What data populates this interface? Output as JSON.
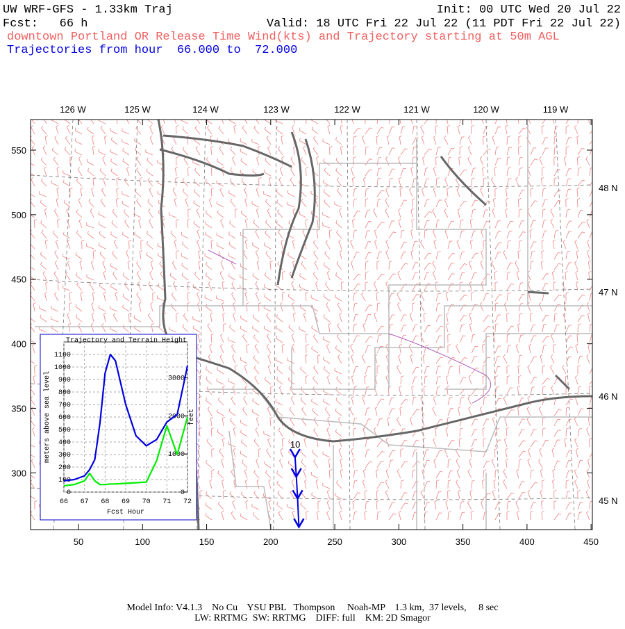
{
  "header": {
    "title": "UW WRF-GFS - 1.33km Traj",
    "init": "Init: 00 UTC Wed 20 Jul 22",
    "forecast": "Fcst:   66 h",
    "valid": "Valid: 18 UTC Fri 22 Jul 22 (11 PDT Fri 22 Jul 22)",
    "subtitle": "downtown Portland OR Release Time Wind(kts) and Trajectory starting at 50m AGL",
    "trajectory_range": "Trajectories from hour  66.000 to  72.000"
  },
  "map": {
    "xlim": [
      12.6,
      451
    ],
    "ylim": [
      256,
      573.7
    ],
    "xticks": [
      50,
      100,
      150,
      200,
      250,
      300,
      350,
      400,
      450
    ],
    "yticks": [
      300,
      350,
      400,
      450,
      500,
      550
    ],
    "lon_labels": [
      "126 W",
      "125 W",
      "124 W",
      "123 W",
      "122 W",
      "121 W",
      "120 W",
      "119 W"
    ],
    "lat_labels": [
      "48 N",
      "47 N",
      "46 N",
      "45 N"
    ],
    "trajectory": {
      "label": "10",
      "x": [
        219,
        220,
        221,
        222
      ],
      "y": [
        312,
        297,
        280,
        258
      ]
    }
  },
  "chart_data": {
    "type": "line",
    "title": "Trajectory and Terrain Height",
    "x_label": "Fcst Hour",
    "y_label": "meters above sea level",
    "y2_label": "feet",
    "x": [
      66,
      66.5,
      67,
      67.25,
      67.5,
      67.75,
      68,
      68.25,
      68.5,
      69,
      69.5,
      70,
      70.5,
      71,
      71.5,
      72
    ],
    "series": [
      {
        "color": "#0000e0",
        "values": [
          90,
          100,
          130,
          180,
          260,
          550,
          950,
          1100,
          1050,
          700,
          450,
          370,
          420,
          560,
          620,
          1010
        ]
      },
      {
        "color": "#00ee00",
        "values": [
          50,
          60,
          90,
          150,
          90,
          60,
          60,
          65,
          65,
          70,
          75,
          80,
          250,
          530,
          300,
          600
        ]
      }
    ],
    "xlim": [
      66,
      72
    ],
    "xticks": [
      66,
      67,
      68,
      69,
      70,
      71,
      72
    ],
    "ylim": [
      0,
      1200
    ],
    "yticks": [
      0,
      100,
      200,
      300,
      400,
      500,
      600,
      700,
      800,
      900,
      1000,
      1100
    ],
    "y2lim": [
      0,
      3937
    ],
    "y2ticks": [
      0,
      1000,
      2000,
      3000
    ],
    "grid": true
  },
  "footer": {
    "line1": "Model Info: V4.1.3    No Cu    YSU PBL   Thompson     Noah-MP    1.3 km,  37 levels,     8 sec",
    "line2": "LW: RRTMG  SW: RRTMG    DIFF: full    KM: 2D Smagor"
  }
}
